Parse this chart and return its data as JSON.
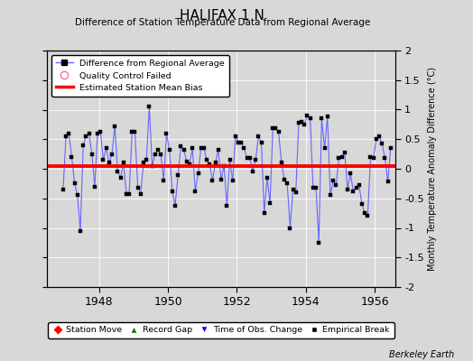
{
  "title": "HALIFAX 1 N",
  "subtitle": "Difference of Station Temperature Data from Regional Average",
  "ylabel_right": "Monthly Temperature Anomaly Difference (°C)",
  "bias_value": 0.05,
  "ylim": [
    -2,
    2
  ],
  "xlim": [
    1946.5,
    1956.583
  ],
  "xticks": [
    1948,
    1950,
    1952,
    1954,
    1956
  ],
  "yticks": [
    -2,
    -1.5,
    -1,
    -0.5,
    0,
    0.5,
    1,
    1.5,
    2
  ],
  "background_color": "#d8d8d8",
  "plot_bg_color": "#d8d8d8",
  "line_color": "#6666ff",
  "marker_color": "black",
  "bias_color": "red",
  "watermark": "Berkeley Earth",
  "data": {
    "x": [
      1946.958,
      1947.042,
      1947.125,
      1947.208,
      1947.292,
      1947.375,
      1947.458,
      1947.542,
      1947.625,
      1947.708,
      1947.792,
      1947.875,
      1947.958,
      1948.042,
      1948.125,
      1948.208,
      1948.292,
      1948.375,
      1948.458,
      1948.542,
      1948.625,
      1948.708,
      1948.792,
      1948.875,
      1948.958,
      1949.042,
      1949.125,
      1949.208,
      1949.292,
      1949.375,
      1949.458,
      1949.542,
      1949.625,
      1949.708,
      1949.792,
      1949.875,
      1949.958,
      1950.042,
      1950.125,
      1950.208,
      1950.292,
      1950.375,
      1950.458,
      1950.542,
      1950.625,
      1950.708,
      1950.792,
      1950.875,
      1950.958,
      1951.042,
      1951.125,
      1951.208,
      1951.292,
      1951.375,
      1951.458,
      1951.542,
      1951.625,
      1951.708,
      1951.792,
      1951.875,
      1951.958,
      1952.042,
      1952.125,
      1952.208,
      1952.292,
      1952.375,
      1952.458,
      1952.542,
      1952.625,
      1952.708,
      1952.792,
      1952.875,
      1952.958,
      1953.042,
      1953.125,
      1953.208,
      1953.292,
      1953.375,
      1953.458,
      1953.542,
      1953.625,
      1953.708,
      1953.792,
      1953.875,
      1953.958,
      1954.042,
      1954.125,
      1954.208,
      1954.292,
      1954.375,
      1954.458,
      1954.542,
      1954.625,
      1954.708,
      1954.792,
      1954.875,
      1954.958,
      1955.042,
      1955.125,
      1955.208,
      1955.292,
      1955.375,
      1955.458,
      1955.542,
      1955.625,
      1955.708,
      1955.792,
      1955.875,
      1955.958,
      1956.042,
      1956.125,
      1956.208,
      1956.292,
      1956.375,
      1956.458
    ],
    "y": [
      -0.35,
      0.55,
      0.6,
      0.2,
      -0.25,
      -0.45,
      -1.05,
      0.4,
      0.55,
      0.6,
      0.25,
      -0.3,
      0.6,
      0.62,
      0.15,
      0.35,
      0.1,
      0.25,
      0.72,
      -0.05,
      -0.15,
      0.1,
      -0.42,
      -0.42,
      0.62,
      0.62,
      -0.32,
      -0.42,
      0.1,
      0.15,
      1.05,
      0.05,
      0.25,
      0.32,
      0.25,
      -0.2,
      0.6,
      0.32,
      -0.38,
      -0.62,
      -0.1,
      0.38,
      0.32,
      0.12,
      0.08,
      0.35,
      -0.38,
      -0.08,
      0.35,
      0.35,
      0.15,
      0.08,
      -0.2,
      0.1,
      0.32,
      -0.18,
      0.05,
      -0.62,
      0.15,
      -0.2,
      0.55,
      0.45,
      0.45,
      0.35,
      0.18,
      0.18,
      -0.05,
      0.15,
      0.55,
      0.45,
      -0.75,
      -0.15,
      -0.58,
      0.68,
      0.68,
      0.62,
      0.1,
      -0.18,
      -0.25,
      -1.0,
      -0.35,
      -0.4,
      0.78,
      0.8,
      0.75,
      0.9,
      0.85,
      -0.32,
      -0.32,
      -1.25,
      0.85,
      0.35,
      0.88,
      -0.45,
      -0.2,
      -0.28,
      0.18,
      0.2,
      0.28,
      -0.35,
      -0.08,
      -0.38,
      -0.32,
      -0.28,
      -0.6,
      -0.75,
      -0.8,
      0.2,
      0.18,
      0.5,
      0.55,
      0.42,
      0.18,
      -0.22,
      0.35
    ]
  }
}
